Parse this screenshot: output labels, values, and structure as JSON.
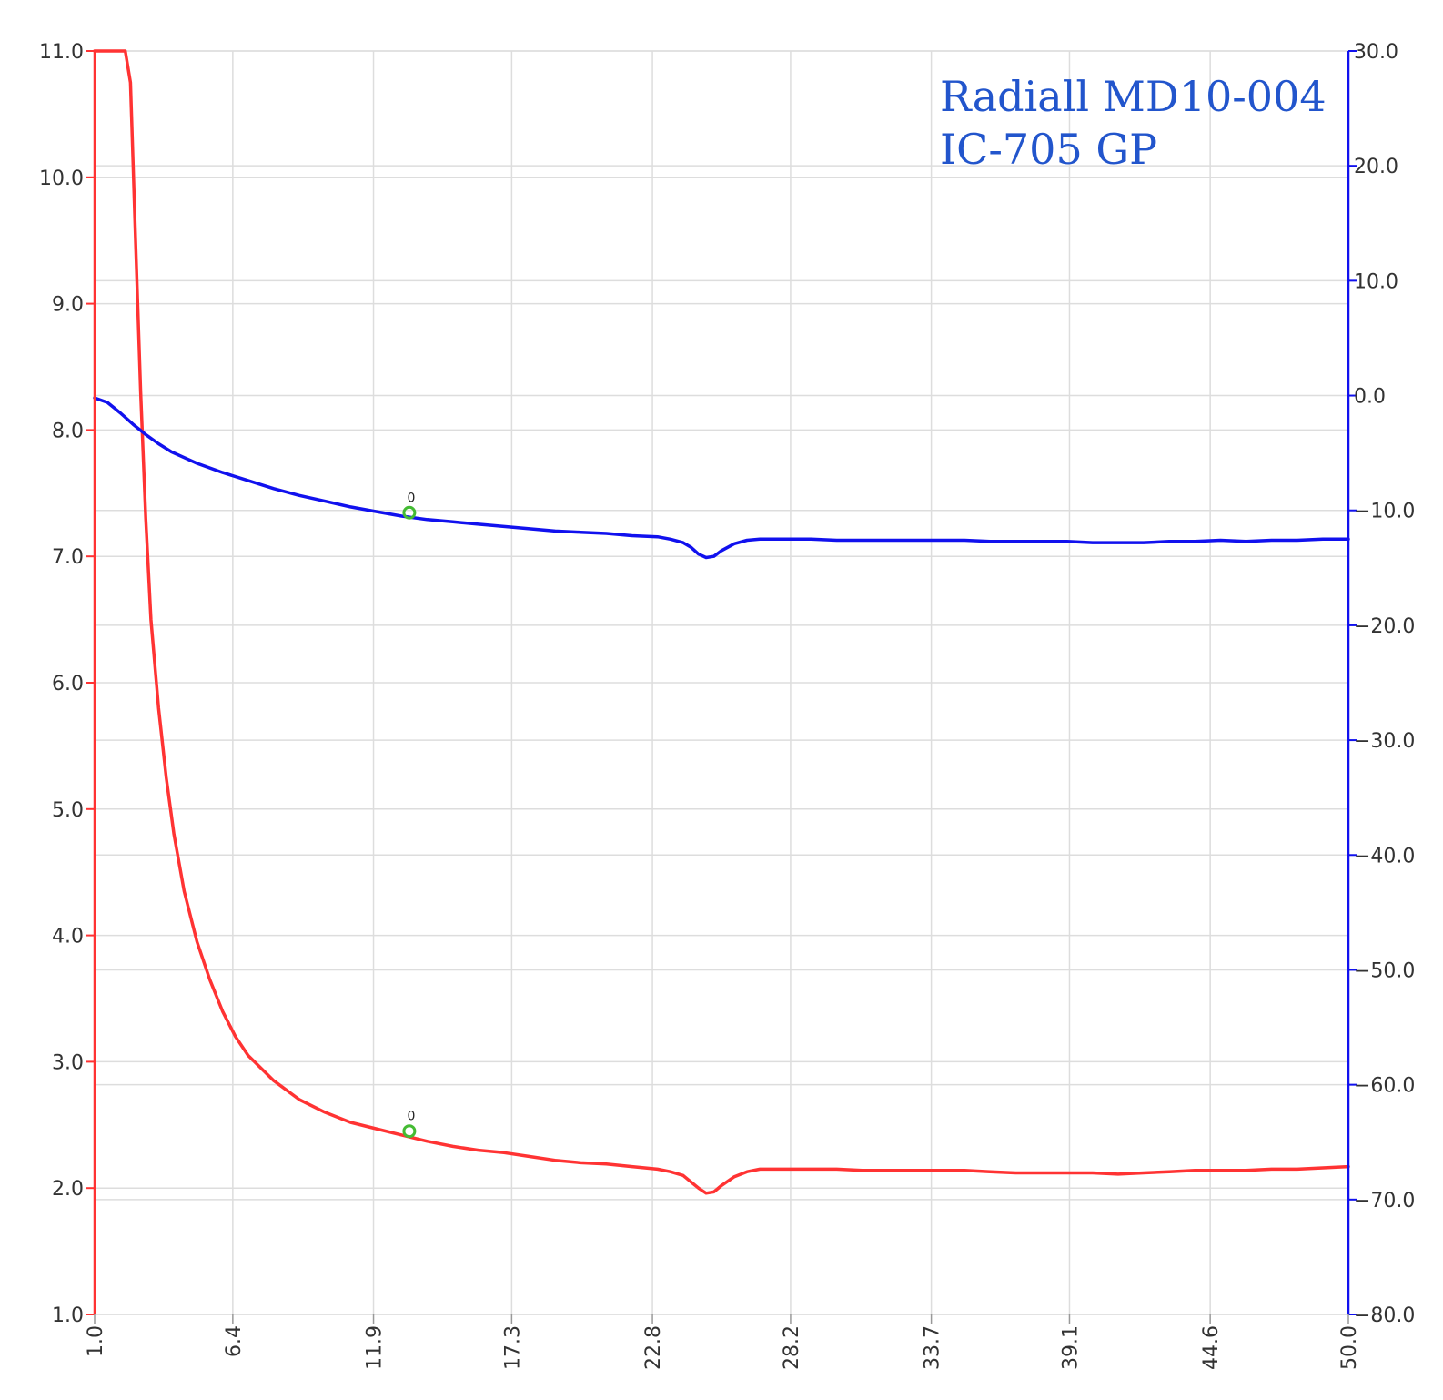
{
  "chart_data": {
    "type": "line",
    "title_lines": [
      "Radiall MD10-004",
      "IC-705 GP"
    ],
    "colors": {
      "title": "#2255cc",
      "left_axis": "#ff3333",
      "right_axis": "#1111ee",
      "grid": "#dddddd",
      "marker": "#44bb33"
    },
    "x_axis": {
      "range": [
        1.0,
        50.0
      ],
      "ticks": [
        1.0,
        6.4,
        11.9,
        17.3,
        22.8,
        28.2,
        33.7,
        39.1,
        44.6,
        50.0
      ],
      "tick_labels": [
        "1.0",
        "6.4",
        "11.9",
        "17.3",
        "22.8",
        "28.2",
        "33.7",
        "39.1",
        "44.6",
        "50.0"
      ]
    },
    "y_left": {
      "range": [
        1.0,
        11.0
      ],
      "ticks": [
        1,
        2,
        3,
        4,
        5,
        6,
        7,
        8,
        9,
        10,
        11
      ],
      "tick_labels": [
        "1.0",
        "2.0",
        "3.0",
        "4.0",
        "5.0",
        "6.0",
        "7.0",
        "8.0",
        "9.0",
        "10.0",
        "11.0"
      ]
    },
    "y_right": {
      "range": [
        -80.0,
        30.0
      ],
      "ticks": [
        30,
        20,
        10,
        0,
        -10,
        -20,
        -30,
        -40,
        -50,
        -60,
        -70,
        -80
      ],
      "tick_labels": [
        "30.0",
        "20.0",
        "10.0",
        "0.0",
        "−10.0",
        "−20.0",
        "−30.0",
        "−40.0",
        "−50.0",
        "−60.0",
        "−70.0",
        "−80.0"
      ]
    },
    "grid": true,
    "series": [
      {
        "axis": "left",
        "color": "#ff3333",
        "x": [
          1.0,
          2.2,
          2.4,
          2.6,
          2.8,
          3.0,
          3.2,
          3.5,
          3.8,
          4.1,
          4.5,
          5.0,
          5.5,
          6.0,
          6.5,
          7.0,
          8.0,
          9.0,
          10.0,
          11.0,
          12.0,
          13.0,
          14.0,
          15.0,
          16.0,
          17.0,
          18.0,
          19.0,
          20.0,
          21.0,
          22.0,
          23.0,
          23.5,
          24.0,
          24.3,
          24.6,
          24.9,
          25.2,
          25.5,
          26.0,
          26.5,
          27.0,
          28.0,
          29.0,
          30.0,
          31.0,
          32.0,
          33.0,
          34.0,
          35.0,
          36.0,
          37.0,
          38.0,
          39.0,
          40.0,
          41.0,
          42.0,
          43.0,
          44.0,
          45.0,
          46.0,
          47.0,
          48.0,
          49.0,
          50.0
        ],
        "y": [
          11.0,
          11.0,
          10.75,
          9.5,
          8.3,
          7.3,
          6.5,
          5.8,
          5.25,
          4.8,
          4.35,
          3.95,
          3.65,
          3.4,
          3.2,
          3.05,
          2.85,
          2.7,
          2.6,
          2.52,
          2.47,
          2.42,
          2.37,
          2.33,
          2.3,
          2.28,
          2.25,
          2.22,
          2.2,
          2.19,
          2.17,
          2.15,
          2.13,
          2.1,
          2.05,
          2.0,
          1.96,
          1.97,
          2.02,
          2.09,
          2.13,
          2.15,
          2.15,
          2.15,
          2.15,
          2.14,
          2.14,
          2.14,
          2.14,
          2.14,
          2.13,
          2.12,
          2.12,
          2.12,
          2.12,
          2.11,
          2.12,
          2.13,
          2.14,
          2.14,
          2.14,
          2.15,
          2.15,
          2.16,
          2.17
        ]
      },
      {
        "axis": "right",
        "color": "#1111ee",
        "x": [
          1.0,
          1.5,
          2.0,
          2.5,
          3.0,
          3.5,
          4.0,
          4.5,
          5.0,
          6.0,
          7.0,
          8.0,
          9.0,
          10.0,
          11.0,
          12.0,
          13.0,
          14.0,
          15.0,
          16.0,
          17.0,
          18.0,
          19.0,
          20.0,
          21.0,
          22.0,
          23.0,
          23.5,
          24.0,
          24.3,
          24.6,
          24.9,
          25.2,
          25.5,
          26.0,
          26.5,
          27.0,
          28.0,
          29.0,
          30.0,
          31.0,
          32.0,
          33.0,
          34.0,
          35.0,
          36.0,
          37.0,
          38.0,
          39.0,
          40.0,
          41.0,
          42.0,
          43.0,
          44.0,
          45.0,
          46.0,
          47.0,
          48.0,
          49.0,
          50.0
        ],
        "y": [
          -0.2,
          -0.6,
          -1.5,
          -2.5,
          -3.4,
          -4.2,
          -4.9,
          -5.4,
          -5.9,
          -6.7,
          -7.4,
          -8.1,
          -8.7,
          -9.2,
          -9.7,
          -10.1,
          -10.5,
          -10.8,
          -11.0,
          -11.2,
          -11.4,
          -11.6,
          -11.8,
          -11.9,
          -12.0,
          -12.2,
          -12.3,
          -12.5,
          -12.8,
          -13.2,
          -13.8,
          -14.1,
          -14.0,
          -13.5,
          -12.9,
          -12.6,
          -12.5,
          -12.5,
          -12.5,
          -12.6,
          -12.6,
          -12.6,
          -12.6,
          -12.6,
          -12.6,
          -12.7,
          -12.7,
          -12.7,
          -12.7,
          -12.8,
          -12.8,
          -12.8,
          -12.7,
          -12.7,
          -12.6,
          -12.7,
          -12.6,
          -12.6,
          -12.5,
          -12.5
        ]
      }
    ],
    "markers": [
      {
        "axis": "left",
        "x": 13.3,
        "y": 2.45,
        "label": "0"
      },
      {
        "axis": "right",
        "x": 13.3,
        "y": -10.2,
        "label": "0"
      }
    ]
  }
}
